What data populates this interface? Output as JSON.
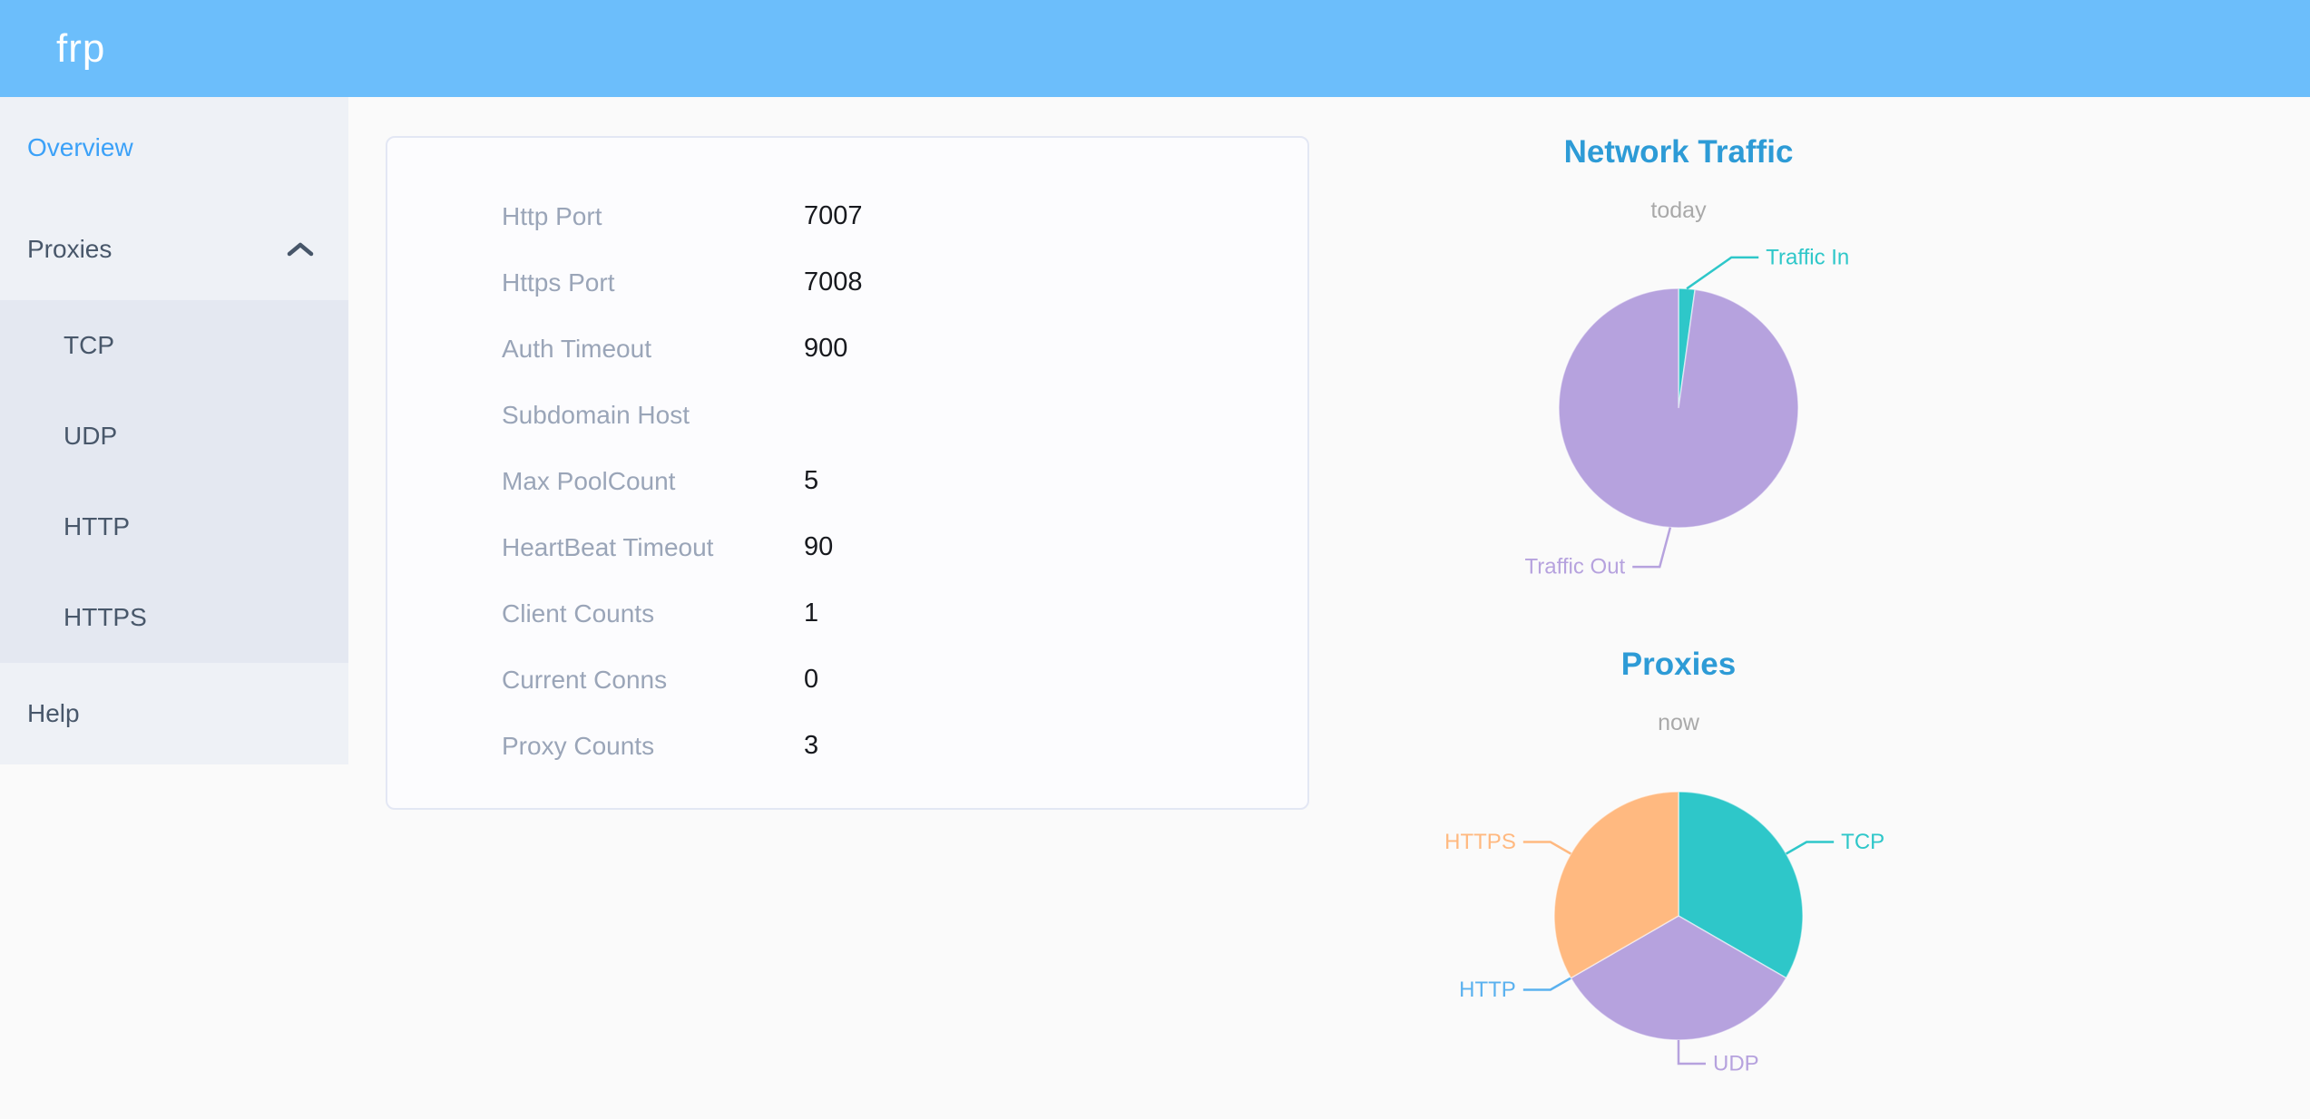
{
  "header": {
    "logo_text": "frp",
    "bg_color": "#6cbefb"
  },
  "sidebar": {
    "overview_label": "Overview",
    "proxies_label": "Proxies",
    "proxies_arrow_icon": "chevron-up",
    "submenu_labels": [
      "TCP",
      "UDP",
      "HTTP",
      "HTTPS"
    ],
    "help_label": "Help",
    "active_item": "Overview",
    "active_color": "#3ba1f8"
  },
  "overview_card": {
    "rows": [
      {
        "label": "Http Port",
        "value": "7007"
      },
      {
        "label": "Https Port",
        "value": "7008"
      },
      {
        "label": "Auth Timeout",
        "value": "900"
      },
      {
        "label": "Subdomain Host",
        "value": ""
      },
      {
        "label": "Max PoolCount",
        "value": "5"
      },
      {
        "label": "HeartBeat Timeout",
        "value": "90"
      },
      {
        "label": "Client Counts",
        "value": "1"
      },
      {
        "label": "Current Conns",
        "value": "0"
      },
      {
        "label": "Proxy Counts",
        "value": "3"
      }
    ]
  },
  "chart_data": [
    {
      "type": "pie",
      "title": "Network Traffic",
      "subtitle": "today",
      "legend_position": "none",
      "labels": "outside-with-leader-lines",
      "values_unit": "percent of total (estimated from arc angles)",
      "slices": [
        {
          "label": "Traffic In",
          "value": 2.2,
          "color": "#2ec7c9",
          "label_angle": 55,
          "line_len": 60
        },
        {
          "label": "Traffic Out",
          "value": 97.8,
          "color": "#b6a2de",
          "label_angle": 195,
          "line_len": 45
        }
      ]
    },
    {
      "type": "pie",
      "title": "Proxies",
      "subtitle": "now",
      "legend_position": "none",
      "labels": "outside-with-leader-lines",
      "values_unit": "proxy count",
      "slices": [
        {
          "label": "TCP",
          "value": 1,
          "color": "#2ec7c9"
        },
        {
          "label": "UDP",
          "value": 1,
          "color": "#b6a2de"
        },
        {
          "label": "HTTP",
          "value": 0,
          "color": "#5ab1ef"
        },
        {
          "label": "HTTPS",
          "value": 1,
          "color": "#ffb980"
        }
      ]
    }
  ]
}
